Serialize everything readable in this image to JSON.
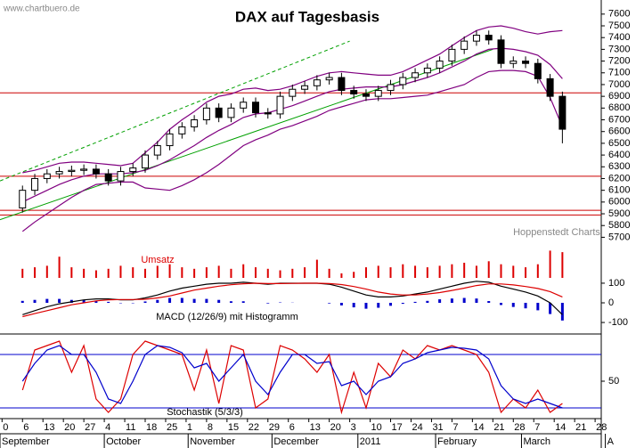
{
  "chart_data": [
    {
      "type": "candlestick",
      "title": "DAX auf Tagesbasis",
      "watermark": "www.chartbuero.de",
      "source": "Hoppenstedt Charts",
      "xlim": [
        -5.5,
        141.5
      ],
      "ylim": [
        5650,
        7720
      ],
      "yticks": [
        7600,
        7500,
        7400,
        7300,
        7200,
        7100,
        7000,
        6900,
        6800,
        6700,
        6600,
        6500,
        6400,
        6300,
        6200,
        6100,
        6000,
        5900,
        5800,
        5700
      ],
      "x": [
        0,
        3,
        6,
        9,
        12,
        15,
        18,
        21,
        24,
        27,
        30,
        33,
        36,
        39,
        42,
        45,
        48,
        51,
        54,
        57,
        60,
        63,
        66,
        69,
        72,
        75,
        78,
        81,
        84,
        87,
        90,
        93,
        96,
        99,
        102,
        105,
        108,
        111,
        114,
        117,
        120,
        123,
        126,
        129,
        132
      ],
      "open": [
        5950,
        6100,
        6200,
        6240,
        6260,
        6270,
        6280,
        6240,
        6180,
        6260,
        6290,
        6400,
        6480,
        6580,
        6640,
        6700,
        6800,
        6720,
        6800,
        6850,
        6760,
        6750,
        6900,
        6960,
        6990,
        7040,
        7060,
        6950,
        6920,
        6900,
        6950,
        7000,
        7060,
        7100,
        7140,
        7200,
        7300,
        7370,
        7420,
        7380,
        7180,
        7200,
        7180,
        7050,
        6900
      ],
      "high": [
        6140,
        6240,
        6280,
        6300,
        6310,
        6320,
        6320,
        6280,
        6300,
        6330,
        6440,
        6520,
        6620,
        6680,
        6740,
        6840,
        6840,
        6840,
        6890,
        6890,
        6800,
        6940,
        7000,
        7030,
        7080,
        7100,
        7100,
        6990,
        6960,
        6990,
        7040,
        7100,
        7140,
        7180,
        7240,
        7340,
        7410,
        7460,
        7460,
        7420,
        7240,
        7240,
        7220,
        7090,
        6940
      ],
      "low": [
        5910,
        6060,
        6160,
        6200,
        6220,
        6230,
        6200,
        6140,
        6140,
        6220,
        6250,
        6360,
        6440,
        6540,
        6600,
        6660,
        6680,
        6680,
        6760,
        6720,
        6710,
        6710,
        6860,
        6920,
        6950,
        7000,
        6910,
        6880,
        6860,
        6860,
        6910,
        6960,
        7020,
        7060,
        7100,
        7160,
        7260,
        7330,
        7340,
        7140,
        7140,
        7140,
        7010,
        6860,
        6500
      ],
      "close": [
        6100,
        6200,
        6240,
        6260,
        6270,
        6280,
        6240,
        6180,
        6260,
        6290,
        6400,
        6480,
        6580,
        6640,
        6700,
        6800,
        6720,
        6800,
        6850,
        6760,
        6750,
        6900,
        6960,
        6990,
        7040,
        7060,
        6950,
        6920,
        6900,
        6950,
        7000,
        7060,
        7100,
        7140,
        7200,
        7300,
        7370,
        7420,
        7380,
        7180,
        7200,
        7180,
        7050,
        6900,
        6620
      ],
      "series": [
        {
          "color": "#800080",
          "values": [
            6250,
            6270,
            6300,
            6330,
            6340,
            6340,
            6330,
            6320,
            6310,
            6330,
            6420,
            6510,
            6620,
            6700,
            6770,
            6850,
            6900,
            6920,
            6960,
            6970,
            6950,
            6960,
            6990,
            7030,
            7070,
            7100,
            7110,
            7100,
            7090,
            7080,
            7080,
            7110,
            7160,
            7210,
            7260,
            7330,
            7400,
            7460,
            7490,
            7500,
            7480,
            7450,
            7430,
            7450,
            7460
          ]
        },
        {
          "color": "#800080",
          "values": [
            6000,
            6050,
            6100,
            6150,
            6190,
            6220,
            6240,
            6240,
            6240,
            6250,
            6270,
            6310,
            6360,
            6420,
            6480,
            6550,
            6610,
            6660,
            6720,
            6750,
            6760,
            6790,
            6820,
            6860,
            6900,
            6940,
            6960,
            6970,
            6980,
            6980,
            6980,
            7000,
            7030,
            7060,
            7100,
            7150,
            7200,
            7260,
            7300,
            7310,
            7300,
            7280,
            7250,
            7170,
            7050
          ]
        },
        {
          "color": "#800080",
          "values": [
            5750,
            5830,
            5900,
            5970,
            6040,
            6100,
            6150,
            6160,
            6170,
            6170,
            6120,
            6110,
            6100,
            6140,
            6190,
            6250,
            6320,
            6400,
            6480,
            6530,
            6570,
            6620,
            6650,
            6690,
            6730,
            6780,
            6810,
            6840,
            6870,
            6880,
            6880,
            6890,
            6900,
            6910,
            6940,
            6970,
            7000,
            7060,
            7110,
            7120,
            7120,
            7110,
            7070,
            6890,
            6640
          ]
        }
      ],
      "trend_lines": [
        {
          "x": [
            -5.5,
            115
          ],
          "values": [
            5850,
            7300
          ],
          "color": "#00a000",
          "dashed": false
        },
        {
          "x": [
            -5.5,
            80
          ],
          "values": [
            6180,
            7370
          ],
          "color": "#00a000",
          "dashed": true
        }
      ],
      "hlines": [
        6930,
        6220,
        5930,
        5890
      ],
      "hline_color": "#cc0000"
    },
    {
      "type": "bar",
      "title": "Umsatz",
      "color": "#dd0000",
      "xlim": [
        -5.5,
        141.5
      ],
      "ylim": [
        0,
        100
      ],
      "x": [
        0,
        3,
        6,
        9,
        12,
        15,
        18,
        21,
        24,
        27,
        30,
        33,
        36,
        39,
        42,
        45,
        48,
        51,
        54,
        57,
        60,
        63,
        66,
        69,
        72,
        75,
        78,
        81,
        84,
        87,
        90,
        93,
        96,
        99,
        102,
        105,
        108,
        111,
        114,
        117,
        120,
        123,
        126,
        129,
        132
      ],
      "values": [
        30,
        35,
        40,
        70,
        35,
        30,
        25,
        30,
        40,
        35,
        30,
        40,
        45,
        35,
        30,
        35,
        40,
        30,
        45,
        35,
        30,
        25,
        30,
        35,
        60,
        30,
        15,
        20,
        35,
        40,
        35,
        45,
        40,
        35,
        40,
        45,
        50,
        40,
        55,
        45,
        40,
        35,
        45,
        90,
        85
      ]
    },
    {
      "type": "line",
      "title": "MACD (12/26/9) mit Histogramm",
      "xlim": [
        -5.5,
        141.5
      ],
      "ylim": [
        -145,
        127
      ],
      "yticks": [
        100,
        0,
        -100
      ],
      "x": [
        0,
        3,
        6,
        9,
        12,
        15,
        18,
        21,
        24,
        27,
        30,
        33,
        36,
        39,
        42,
        45,
        48,
        51,
        54,
        57,
        60,
        63,
        66,
        69,
        72,
        75,
        78,
        81,
        84,
        87,
        90,
        93,
        96,
        99,
        102,
        105,
        108,
        111,
        114,
        117,
        120,
        123,
        126,
        129,
        132
      ],
      "series": [
        {
          "color": "#0000cc",
          "style": "bar",
          "values": [
            10,
            15,
            20,
            20,
            15,
            15,
            10,
            5,
            -2,
            -2,
            7,
            15,
            25,
            25,
            20,
            20,
            15,
            8,
            8,
            0,
            -3,
            2,
            1,
            0,
            0,
            -3,
            -13,
            -23,
            -30,
            -25,
            -15,
            -5,
            5,
            10,
            18,
            22,
            25,
            22,
            9,
            -11,
            -21,
            -28,
            -38,
            -57,
            -90
          ]
        },
        {
          "color": "#000000",
          "values": [
            -60,
            -40,
            -20,
            -5,
            5,
            15,
            20,
            20,
            15,
            15,
            25,
            40,
            60,
            75,
            85,
            95,
            100,
            100,
            105,
            100,
            95,
            100,
            100,
            100,
            100,
            95,
            80,
            60,
            40,
            30,
            30,
            35,
            45,
            55,
            70,
            85,
            100,
            110,
            105,
            85,
            70,
            55,
            35,
            0,
            -60
          ]
        },
        {
          "color": "#dd0000",
          "values": [
            -70,
            -55,
            -40,
            -25,
            -10,
            0,
            10,
            15,
            17,
            17,
            18,
            25,
            35,
            50,
            65,
            75,
            85,
            92,
            97,
            100,
            98,
            98,
            99,
            100,
            100,
            98,
            93,
            83,
            70,
            55,
            45,
            40,
            40,
            45,
            52,
            63,
            75,
            88,
            96,
            96,
            91,
            83,
            73,
            57,
            30
          ]
        }
      ]
    },
    {
      "type": "line",
      "title": "Stochastik (5/3/3)",
      "xlim": [
        -5.5,
        141.5
      ],
      "ylim": [
        8,
        102
      ],
      "yticks": [
        50
      ],
      "levels": [
        80,
        20
      ],
      "level_color": "#0000cc",
      "x": [
        0,
        3,
        6,
        9,
        12,
        15,
        18,
        21,
        24,
        27,
        30,
        33,
        36,
        39,
        42,
        45,
        48,
        51,
        54,
        57,
        60,
        63,
        66,
        69,
        72,
        75,
        78,
        81,
        84,
        87,
        90,
        93,
        96,
        99,
        102,
        105,
        108,
        111,
        114,
        117,
        120,
        123,
        126,
        129,
        132
      ],
      "series": [
        {
          "color": "#dd0000",
          "values": [
            40,
            85,
            90,
            95,
            60,
            90,
            30,
            15,
            30,
            80,
            95,
            90,
            85,
            80,
            40,
            85,
            25,
            90,
            85,
            20,
            30,
            90,
            85,
            75,
            60,
            80,
            15,
            60,
            20,
            70,
            55,
            85,
            75,
            90,
            85,
            90,
            85,
            80,
            60,
            15,
            30,
            20,
            40,
            15,
            25
          ]
        },
        {
          "color": "#0000cc",
          "values": [
            50,
            70,
            85,
            90,
            80,
            80,
            60,
            30,
            25,
            50,
            80,
            90,
            88,
            82,
            65,
            70,
            50,
            65,
            80,
            50,
            35,
            60,
            80,
            80,
            70,
            72,
            45,
            50,
            35,
            50,
            55,
            70,
            75,
            82,
            85,
            88,
            87,
            85,
            75,
            45,
            30,
            25,
            30,
            25,
            20
          ]
        }
      ],
      "xticks": [
        {
          "value": -5,
          "label": "0"
        },
        {
          "value": 0,
          "label": "6"
        },
        {
          "value": 5,
          "label": "13"
        },
        {
          "value": 10,
          "label": "20"
        },
        {
          "value": 15,
          "label": "27"
        },
        {
          "value": 20,
          "label": "4"
        },
        {
          "value": 25,
          "label": "11"
        },
        {
          "value": 30,
          "label": "18"
        },
        {
          "value": 35,
          "label": "25"
        },
        {
          "value": 40,
          "label": "1"
        },
        {
          "value": 45,
          "label": "8"
        },
        {
          "value": 50,
          "label": "15"
        },
        {
          "value": 55,
          "label": "22"
        },
        {
          "value": 60,
          "label": "29"
        },
        {
          "value": 65,
          "label": "6"
        },
        {
          "value": 70,
          "label": "13"
        },
        {
          "value": 75,
          "label": "20"
        },
        {
          "value": 80,
          "label": "3"
        },
        {
          "value": 85,
          "label": "10"
        },
        {
          "value": 90,
          "label": "17"
        },
        {
          "value": 95,
          "label": "24"
        },
        {
          "value": 100,
          "label": "31"
        },
        {
          "value": 105,
          "label": "7"
        },
        {
          "value": 110,
          "label": "14"
        },
        {
          "value": 115,
          "label": "21"
        },
        {
          "value": 120,
          "label": "28"
        },
        {
          "value": 125,
          "label": "7"
        },
        {
          "value": 130,
          "label": "14"
        },
        {
          "value": 135,
          "label": "21"
        },
        {
          "value": 140,
          "label": "28"
        }
      ],
      "month_ticks": [
        {
          "value": -5.5,
          "label": "September"
        },
        {
          "value": 20,
          "label": "October"
        },
        {
          "value": 40.5,
          "label": "November"
        },
        {
          "value": 61,
          "label": "December"
        },
        {
          "value": 82,
          "label": "2011"
        },
        {
          "value": 101,
          "label": "February"
        },
        {
          "value": 122,
          "label": "March"
        },
        {
          "value": 142.5,
          "label": "A"
        }
      ]
    }
  ]
}
